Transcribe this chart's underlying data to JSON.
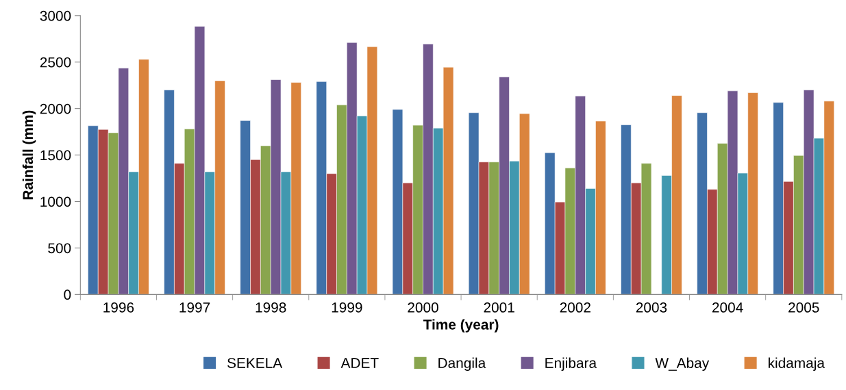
{
  "chart_data": {
    "type": "bar",
    "xlabel": "Time (year)",
    "ylabel": "Rainfall (mm)",
    "categories": [
      "1996",
      "1997",
      "1998",
      "1999",
      "2000",
      "2001",
      "2002",
      "2003",
      "2004",
      "2005"
    ],
    "series": [
      {
        "name": "SEKELA",
        "color": "#4071a9",
        "values": [
          1815,
          2200,
          1870,
          2290,
          1990,
          1955,
          1525,
          1825,
          1955,
          2065
        ]
      },
      {
        "name": "ADET",
        "color": "#aa4644",
        "values": [
          1775,
          1410,
          1450,
          1300,
          1200,
          1425,
          995,
          1200,
          1130,
          1215
        ]
      },
      {
        "name": "Dangila",
        "color": "#89a54e",
        "values": [
          1740,
          1780,
          1600,
          2040,
          1820,
          1425,
          1360,
          1410,
          1625,
          1495
        ]
      },
      {
        "name": "Enjibara",
        "color": "#71588f",
        "values": [
          2435,
          2885,
          2310,
          2710,
          2695,
          2340,
          2135,
          null,
          2190,
          2200
        ]
      },
      {
        "name": "W_Abay",
        "color": "#4198af",
        "values": [
          1320,
          1320,
          1320,
          1920,
          1790,
          1435,
          1140,
          1280,
          1305,
          1680
        ]
      },
      {
        "name": "kidamaja",
        "color": "#db843d",
        "values": [
          2530,
          2300,
          2280,
          2665,
          2445,
          1945,
          1865,
          2140,
          2170,
          2080
        ]
      }
    ],
    "ylim": [
      0,
      3000
    ],
    "yticks": [
      0,
      500,
      1000,
      1500,
      2000,
      2500,
      3000
    ],
    "grid": false,
    "legend": "bottom"
  }
}
